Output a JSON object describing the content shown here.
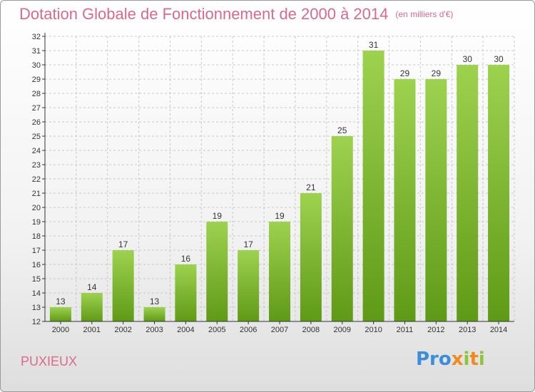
{
  "header": {
    "title": "Dotation Globale de Fonctionnement de 2000 à 2014",
    "subtitle": "(en milliers d'€)"
  },
  "footer": {
    "city": "PUXIEUX",
    "brand_p1": "Pro",
    "brand_x": "x",
    "brand_i1": "i",
    "brand_t": "t",
    "brand_i2": "i"
  },
  "colors": {
    "bar_top": "#9dd24f",
    "bar_bottom": "#5f9a17",
    "title": "#d86a8c",
    "grid": "#c8c8c8",
    "axis": "#333333"
  },
  "chart_data": {
    "type": "bar",
    "categories": [
      "2000",
      "2001",
      "2002",
      "2003",
      "2004",
      "2005",
      "2006",
      "2007",
      "2008",
      "2009",
      "2010",
      "2011",
      "2012",
      "2013",
      "2014"
    ],
    "values": [
      13,
      14,
      17,
      13,
      16,
      19,
      17,
      19,
      21,
      25,
      31,
      29,
      29,
      30,
      30
    ],
    "ylim": [
      12,
      32
    ],
    "yticks": [
      12,
      13,
      14,
      15,
      16,
      17,
      18,
      19,
      20,
      21,
      22,
      23,
      24,
      25,
      26,
      27,
      28,
      29,
      30,
      31,
      32
    ],
    "grid": true,
    "legend": "none"
  }
}
